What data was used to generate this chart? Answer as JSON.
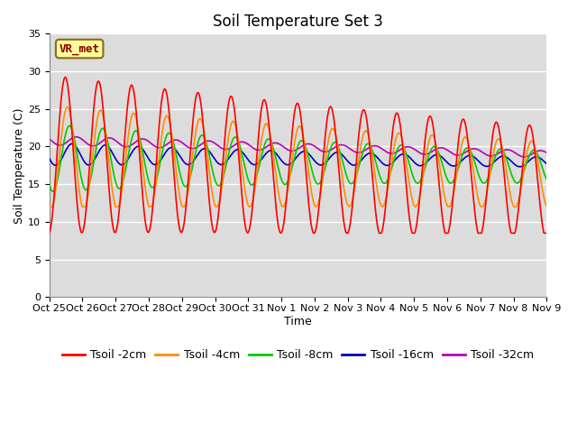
{
  "title": "Soil Temperature Set 3",
  "xlabel": "Time",
  "ylabel": "Soil Temperature (C)",
  "ylim": [
    0,
    35
  ],
  "yticks": [
    0,
    5,
    10,
    15,
    20,
    25,
    30,
    35
  ],
  "x_labels": [
    "Oct 25",
    "Oct 26",
    "Oct 27",
    "Oct 28",
    "Oct 29",
    "Oct 30",
    "Oct 31",
    "Nov 1",
    "Nov 2",
    "Nov 3",
    "Nov 4",
    "Nov 5",
    "Nov 6",
    "Nov 7",
    "Nov 8",
    "Nov 9"
  ],
  "annotation_text": "VR_met",
  "annotation_color": "#8B0000",
  "annotation_bg": "#FFFF99",
  "annotation_border": "#8B6914",
  "colors": {
    "Tsoil -2cm": "#FF0000",
    "Tsoil -4cm": "#FF8C00",
    "Tsoil -8cm": "#00CC00",
    "Tsoil -16cm": "#0000CC",
    "Tsoil -32cm": "#BB00BB"
  },
  "plot_bg": "#DCDCDC",
  "grid_color": "#FFFFFF",
  "title_fontsize": 12,
  "axis_label_fontsize": 9,
  "tick_fontsize": 8,
  "legend_fontsize": 9,
  "figsize": [
    6.4,
    4.8
  ],
  "dpi": 100
}
